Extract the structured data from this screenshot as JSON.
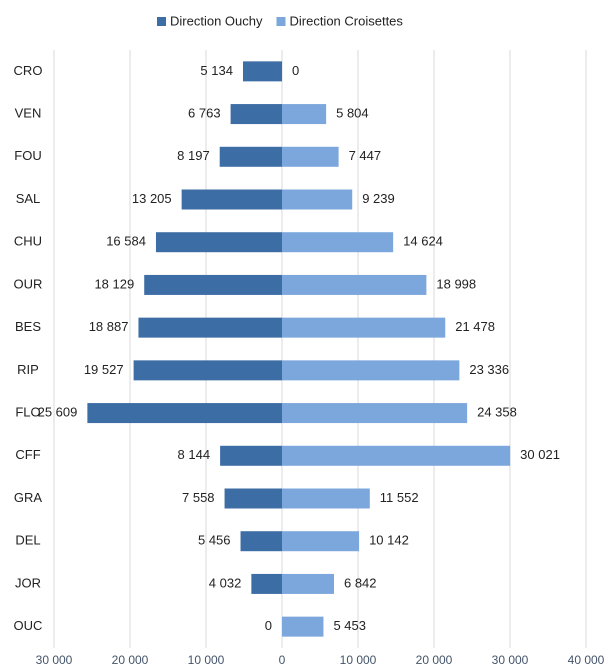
{
  "chart_data": {
    "type": "bar",
    "orientation": "horizontal",
    "categories": [
      "CRO",
      "VEN",
      "FOU",
      "SAL",
      "CHU",
      "OUR",
      "BES",
      "RIP",
      "FLO",
      "CFF",
      "GRA",
      "DEL",
      "JOR",
      "OUC"
    ],
    "series": [
      {
        "name": "Direction Ouchy",
        "color": "#3d6da5",
        "values": [
          -5134,
          -6763,
          -8197,
          -13205,
          -16584,
          -18129,
          -18887,
          -19527,
          -25609,
          -8144,
          -7558,
          -5456,
          -4032,
          0
        ],
        "value_labels": [
          "5 134",
          "6 763",
          "8 197",
          "13 205",
          "16 584",
          "18 129",
          "18 887",
          "19 527",
          "25 609",
          "8 144",
          "7 558",
          "5 456",
          "4 032",
          "0"
        ]
      },
      {
        "name": "Direction Croisettes",
        "color": "#7ba7dc",
        "values": [
          0,
          5804,
          7447,
          9239,
          14624,
          18998,
          21478,
          23336,
          24358,
          30021,
          11552,
          10142,
          6842,
          5453
        ],
        "value_labels": [
          "0",
          "5 804",
          "7 447",
          "9 239",
          "14 624",
          "18 998",
          "21 478",
          "23 336",
          "24 358",
          "30 021",
          "11 552",
          "10 142",
          "6 842",
          "5 453"
        ]
      }
    ],
    "xlim": [
      -30000,
      40000
    ],
    "xticks": [
      {
        "value": -30000,
        "label": "30 000"
      },
      {
        "value": -20000,
        "label": "20 000"
      },
      {
        "value": -10000,
        "label": "10 000"
      },
      0,
      {
        "value": 10000,
        "label": "10 000"
      },
      {
        "value": 20000,
        "label": "20 000"
      },
      {
        "value": 30000,
        "label": "30 000"
      },
      {
        "value": 40000,
        "label": "40 000"
      }
    ],
    "grid": true,
    "legend": "top"
  }
}
